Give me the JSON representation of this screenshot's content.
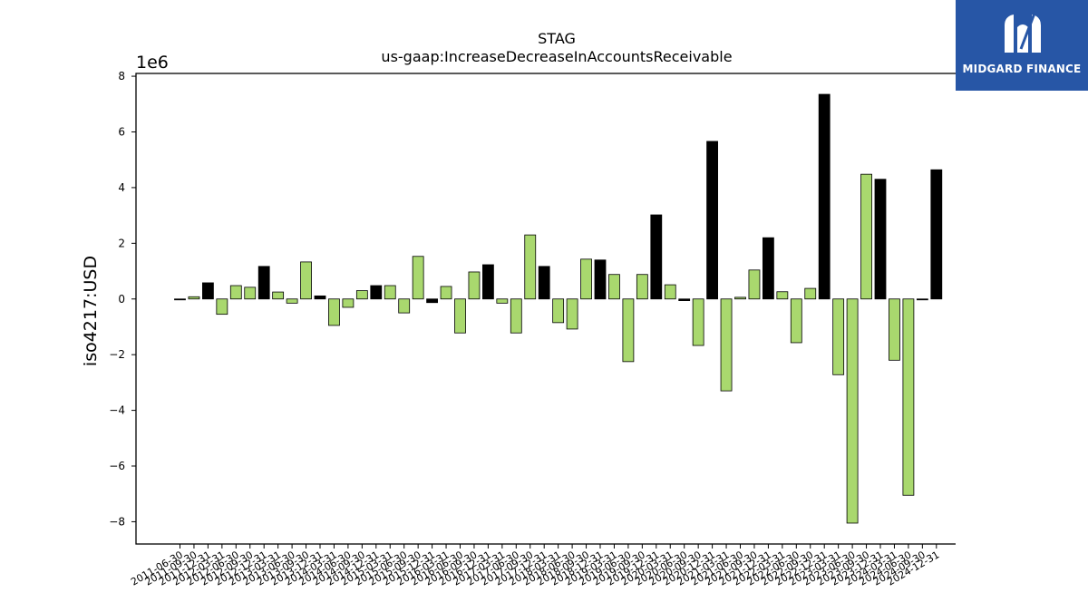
{
  "brand": {
    "name": "MIDGARD FINANCE",
    "background": "#2756a6"
  },
  "chart_data": {
    "type": "bar",
    "title": "STAG",
    "subtitle": "us-gaap:IncreaseDecreaseInAccountsReceivable",
    "ylabel": "iso4217:USD",
    "y_offset_text": "1e6",
    "ylim": [
      -8.8,
      8.1
    ],
    "yticks": [
      -8,
      -6,
      -4,
      -2,
      0,
      2,
      4,
      6,
      8
    ],
    "colors": {
      "quarterly": "#a9d86e",
      "annual": "#000000"
    },
    "x_labels": [
      "2011-06-30",
      "2011-09-30",
      "2011-12-31",
      "2012-03-31",
      "2012-06-30",
      "2012-09-30",
      "2012-12-31",
      "2013-03-31",
      "2013-06-30",
      "2013-09-30",
      "2013-12-31",
      "2014-03-31",
      "2014-06-30",
      "2014-09-30",
      "2014-12-31",
      "2015-03-31",
      "2015-06-30",
      "2015-09-30",
      "2015-12-31",
      "2016-03-31",
      "2016-06-30",
      "2016-09-30",
      "2016-12-31",
      "2017-03-31",
      "2017-06-30",
      "2017-09-30",
      "2017-12-31",
      "2018-03-31",
      "2018-06-30",
      "2018-09-30",
      "2018-12-31",
      "2019-03-31",
      "2019-06-30",
      "2019-09-30",
      "2019-12-31",
      "2020-03-31",
      "2020-06-30",
      "2020-09-30",
      "2020-12-31",
      "2021-03-31",
      "2021-06-30",
      "2021-09-30",
      "2021-12-31",
      "2022-03-31",
      "2022-06-30",
      "2022-09-30",
      "2022-12-31",
      "2023-03-31",
      "2023-06-30",
      "2023-09-30",
      "2023-12-31",
      "2024-03-31",
      "2024-06-30",
      "2024-09-30",
      "2024-12-31"
    ],
    "values": [
      -0.03,
      0.08,
      0.58,
      -0.55,
      0.48,
      0.42,
      1.17,
      0.25,
      -0.15,
      1.33,
      0.11,
      -0.95,
      -0.3,
      0.3,
      0.48,
      0.48,
      -0.5,
      1.53,
      -0.13,
      0.45,
      -1.22,
      0.97,
      1.23,
      -0.15,
      -1.22,
      2.3,
      1.17,
      -0.85,
      -1.08,
      1.43,
      1.4,
      0.88,
      -2.25,
      0.88,
      3.02,
      0.51,
      -0.06,
      -1.67,
      5.66,
      -3.3,
      0.06,
      1.04,
      2.2,
      0.26,
      -1.57,
      0.38,
      7.35,
      -2.72,
      -8.05,
      4.48,
      4.3,
      -2.2,
      -7.05,
      -0.03,
      4.64
    ],
    "is_annual": [
      1,
      0,
      1,
      0,
      0,
      0,
      1,
      0,
      0,
      0,
      1,
      0,
      0,
      0,
      1,
      0,
      0,
      0,
      1,
      0,
      0,
      0,
      1,
      0,
      0,
      0,
      1,
      0,
      0,
      0,
      1,
      0,
      0,
      0,
      1,
      0,
      1,
      0,
      1,
      0,
      0,
      0,
      1,
      0,
      0,
      0,
      1,
      0,
      0,
      0,
      1,
      0,
      0,
      1,
      1
    ]
  }
}
